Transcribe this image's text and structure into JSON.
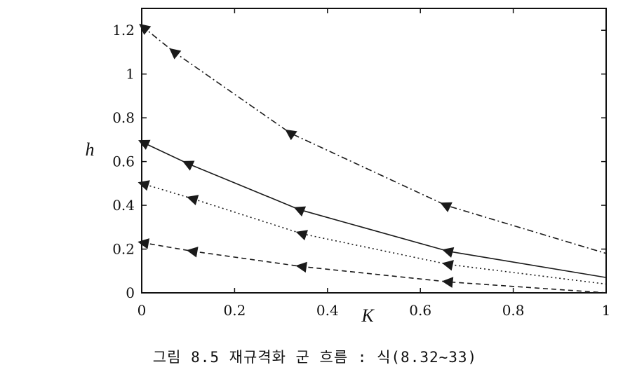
{
  "caption": "그림 8.5  재규격화 군 흐름 : 식(8.32~33)",
  "chart_data": {
    "type": "line",
    "xlabel": "K",
    "ylabel": "h",
    "xlim": [
      0,
      1
    ],
    "ylim": [
      0,
      1.3
    ],
    "xticks": [
      0,
      0.2,
      0.4,
      0.6,
      0.8,
      1
    ],
    "xtick_labels": [
      "0",
      "0.2",
      "0.4",
      "0.6",
      "0.8",
      "1"
    ],
    "yticks": [
      0,
      0.2,
      0.4,
      0.6,
      0.8,
      1,
      1.2
    ],
    "ytick_labels": [
      "0",
      "0.2",
      "0.4",
      "0.6",
      "0.8",
      "1",
      "1.2"
    ],
    "grid": false,
    "legend": "none",
    "series": [
      {
        "line_style": "dash-dot",
        "x": [
          0,
          0.07,
          0.32,
          0.655,
          1
        ],
        "y": [
          1.22,
          1.1,
          0.73,
          0.4,
          0.18
        ],
        "marker_x": [
          0.005,
          0.07,
          0.32,
          0.655
        ]
      },
      {
        "line_style": "solid",
        "x": [
          0,
          0.1,
          0.34,
          0.66,
          1
        ],
        "y": [
          0.69,
          0.59,
          0.38,
          0.19,
          0.07
        ],
        "marker_x": [
          0.005,
          0.1,
          0.34,
          0.66
        ]
      },
      {
        "line_style": "dotted",
        "x": [
          0,
          0.11,
          0.345,
          0.66,
          1
        ],
        "y": [
          0.5,
          0.43,
          0.27,
          0.13,
          0.04
        ],
        "marker_x": [
          0.005,
          0.11,
          0.345,
          0.66
        ]
      },
      {
        "line_style": "dashed",
        "x": [
          0,
          0.11,
          0.345,
          0.66,
          1
        ],
        "y": [
          0.23,
          0.19,
          0.12,
          0.05,
          0.0
        ],
        "marker_x": [
          0.005,
          0.11,
          0.345,
          0.66
        ]
      }
    ]
  }
}
